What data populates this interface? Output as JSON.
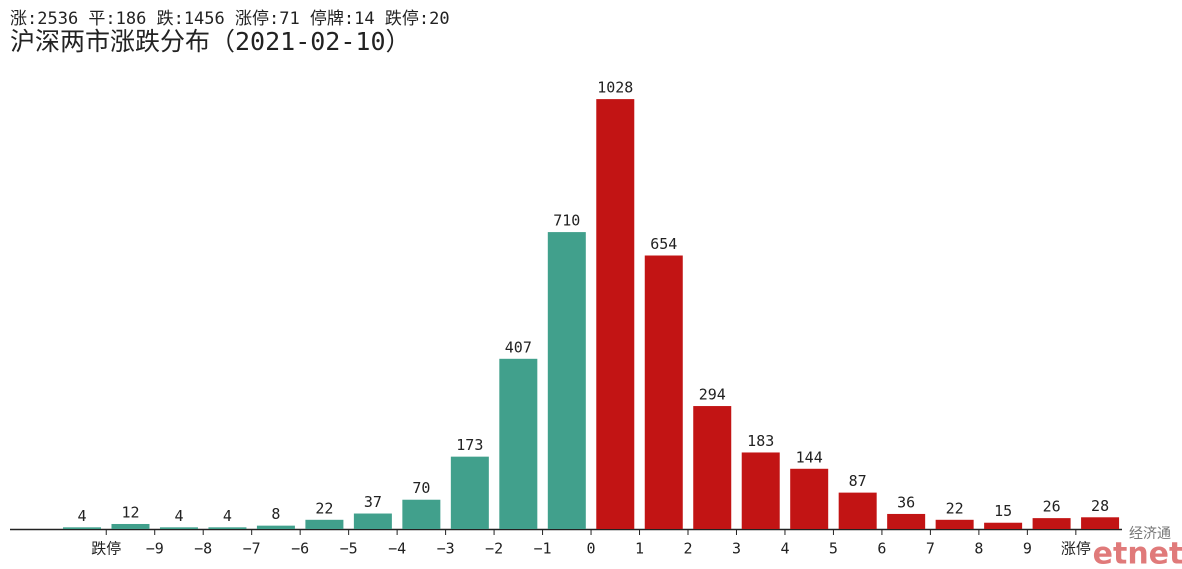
{
  "chart_data": {
    "type": "bar",
    "subtitle": "涨:2536 平:186 跌:1456 涨停:71 停牌:14 跌停:20",
    "title": "沪深两市涨跌分布（2021-02-10）",
    "values": [
      4,
      12,
      4,
      4,
      8,
      22,
      37,
      70,
      173,
      407,
      710,
      1028,
      654,
      294,
      183,
      144,
      87,
      36,
      22,
      15,
      26,
      28
    ],
    "colors": [
      "#41a08c",
      "#41a08c",
      "#41a08c",
      "#41a08c",
      "#41a08c",
      "#41a08c",
      "#41a08c",
      "#41a08c",
      "#41a08c",
      "#41a08c",
      "#41a08c",
      "#c21414",
      "#c21414",
      "#c21414",
      "#c21414",
      "#c21414",
      "#c21414",
      "#c21414",
      "#c21414",
      "#c21414",
      "#c21414",
      "#c21414"
    ],
    "boundary_labels": [
      "跌停",
      "−9",
      "−8",
      "−7",
      "−6",
      "−5",
      "−4",
      "−3",
      "−2",
      "−1",
      "0",
      "1",
      "2",
      "3",
      "4",
      "5",
      "6",
      "7",
      "8",
      "9",
      "涨停"
    ],
    "ylim": [
      0,
      1100
    ],
    "watermark": {
      "top": "经济通",
      "bottom": "etnet"
    }
  }
}
